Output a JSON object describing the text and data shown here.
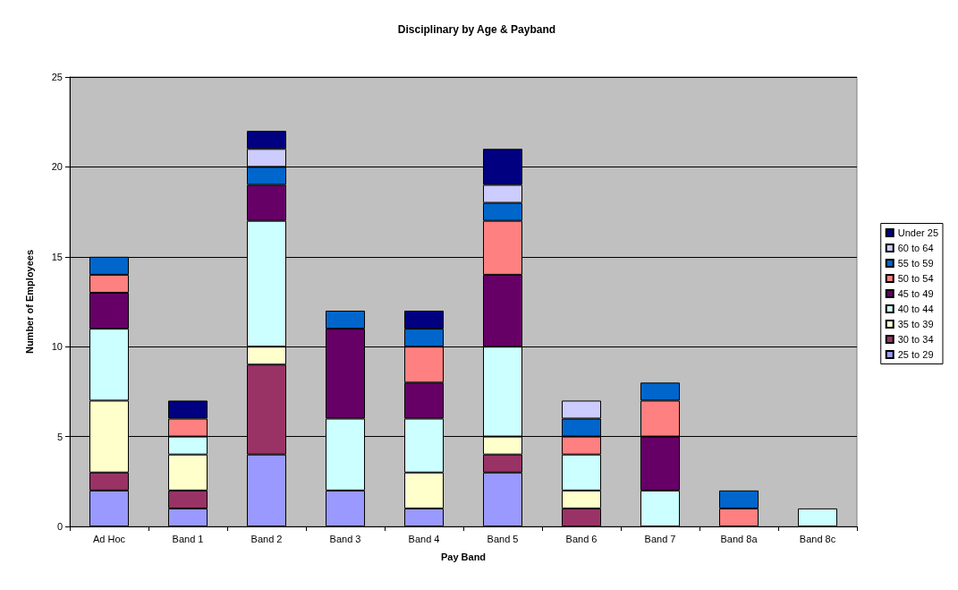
{
  "chart_data": {
    "type": "bar",
    "title": "Disciplinary by Age & Payband",
    "xlabel": "Pay Band",
    "ylabel": "Number of Employees",
    "categories": [
      "Ad Hoc",
      "Band 1",
      "Band 2",
      "Band 3",
      "Band 4",
      "Band 5",
      "Band 6",
      "Band 7",
      "Band 8a",
      "Band 8c"
    ],
    "stacked": true,
    "ylim": [
      0,
      25
    ],
    "yticks": [
      0,
      5,
      10,
      15,
      20,
      25
    ],
    "grid": "y",
    "legend": "right",
    "series": [
      {
        "name": "25 to 29",
        "color": "#9999ff",
        "values": [
          2,
          1,
          4,
          2,
          1,
          3,
          0,
          0,
          0,
          0
        ]
      },
      {
        "name": "30 to 34",
        "color": "#993366",
        "values": [
          1,
          1,
          5,
          0,
          0,
          1,
          1,
          0,
          0,
          0
        ]
      },
      {
        "name": "35 to 39",
        "color": "#ffffcc",
        "values": [
          4,
          2,
          1,
          0,
          2,
          1,
          1,
          0,
          0,
          0
        ]
      },
      {
        "name": "40 to 44",
        "color": "#ccffff",
        "values": [
          4,
          1,
          7,
          4,
          3,
          5,
          2,
          2,
          0,
          1
        ]
      },
      {
        "name": "45 to 49",
        "color": "#660066",
        "values": [
          2,
          0,
          2,
          5,
          2,
          4,
          0,
          3,
          0,
          0
        ]
      },
      {
        "name": "50 to 54",
        "color": "#ff8080",
        "values": [
          1,
          1,
          0,
          0,
          2,
          3,
          1,
          2,
          1,
          0
        ]
      },
      {
        "name": "55 to 59",
        "color": "#0066cc",
        "values": [
          1,
          0,
          1,
          1,
          1,
          1,
          1,
          1,
          1,
          0
        ]
      },
      {
        "name": "60 to 64",
        "color": "#ccccff",
        "values": [
          0,
          0,
          1,
          0,
          0,
          1,
          1,
          0,
          0,
          0
        ]
      },
      {
        "name": "Under 25",
        "color": "#000080",
        "values": [
          0,
          1,
          1,
          0,
          1,
          2,
          0,
          0,
          0,
          0
        ]
      }
    ]
  }
}
